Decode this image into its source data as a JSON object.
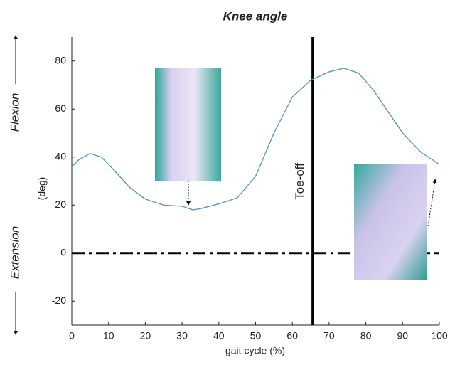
{
  "chart_data": {
    "type": "line",
    "title": "Knee angle",
    "xlabel": "gait cycle (%)",
    "ylabel": "(deg)",
    "upper_label": "Flexion",
    "lower_label": "Extension",
    "annotation": {
      "text": "Toe-off",
      "x": 65.5
    },
    "reference_line": 0,
    "x": [
      0,
      2,
      5,
      8,
      10,
      13,
      16,
      20,
      25,
      30,
      33,
      35,
      40,
      45,
      50,
      55,
      60,
      65,
      70,
      74,
      78,
      82,
      86,
      90,
      95,
      100
    ],
    "series": [
      {
        "name": "Knee angle",
        "color": "#4f93c0",
        "values": [
          36,
          39,
          41.5,
          40,
          37,
          32,
          27,
          22.5,
          20,
          19.5,
          18,
          18.5,
          20.5,
          23,
          32,
          50,
          65,
          72,
          75.5,
          77,
          75,
          68,
          59,
          50,
          42,
          37
        ]
      }
    ],
    "xlim": [
      0,
      100
    ],
    "xticks": [
      0,
      10,
      20,
      30,
      40,
      50,
      60,
      70,
      80,
      90,
      100
    ],
    "ylim": [
      -30,
      90
    ],
    "yticks": [
      -20,
      0,
      20,
      40,
      60,
      80
    ],
    "grid": false
  }
}
